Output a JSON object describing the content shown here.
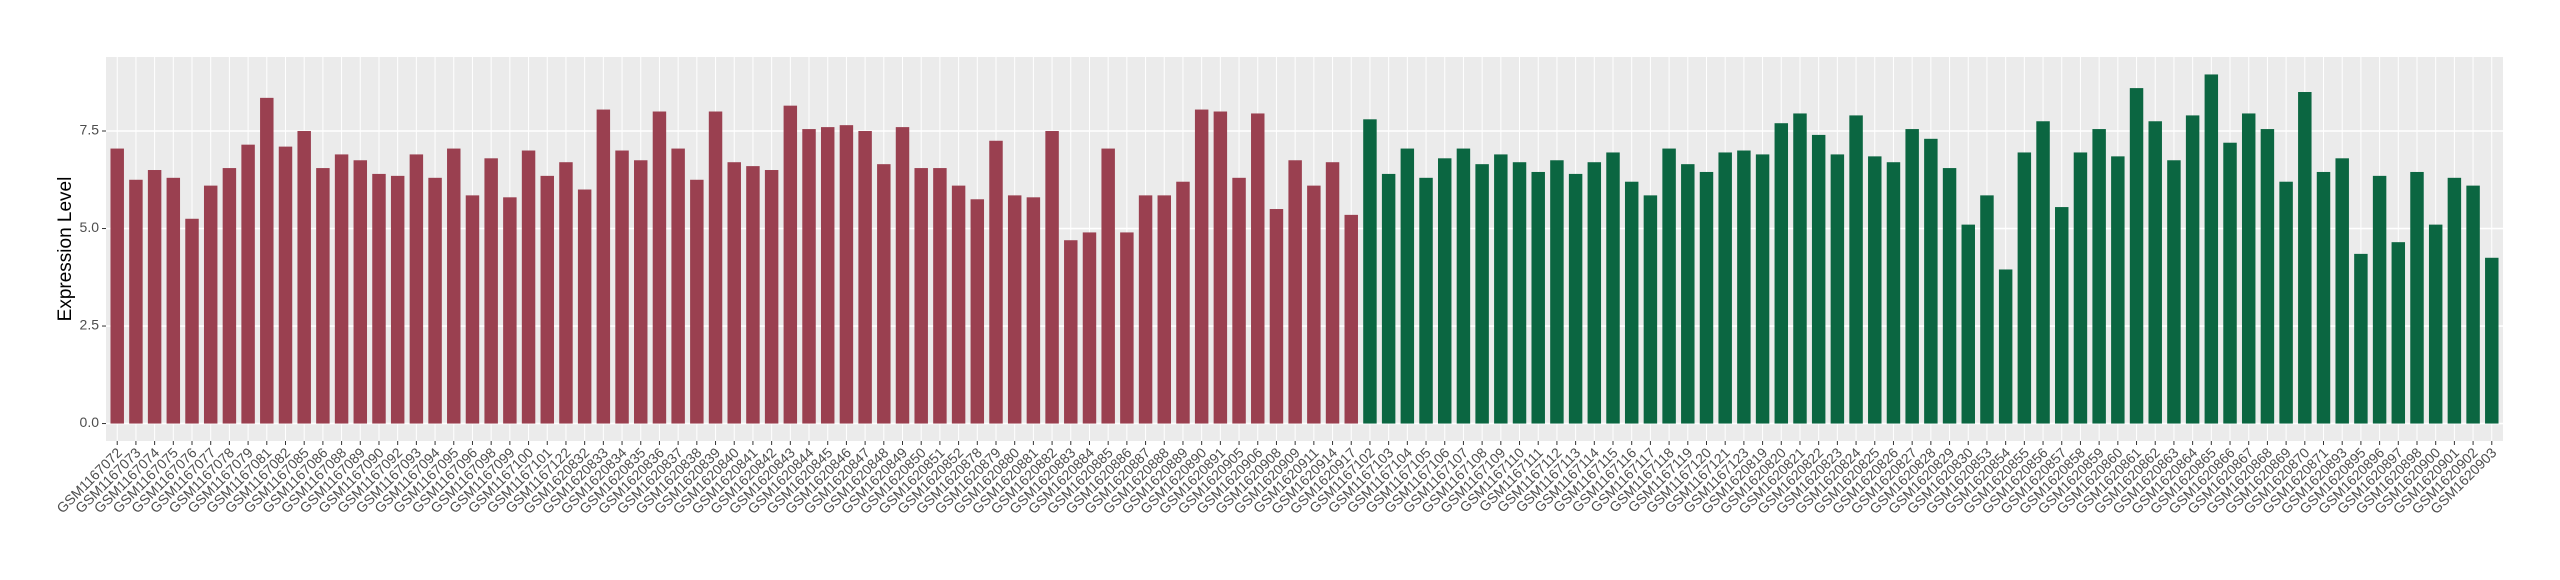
{
  "chart_data": {
    "type": "bar",
    "y_label": "Expression Level",
    "categories": [
      "GSM1167072",
      "GSM1167073",
      "GSM1167074",
      "GSM1167075",
      "GSM1167076",
      "GSM1167077",
      "GSM1167078",
      "GSM1167079",
      "GSM1167081",
      "GSM1167082",
      "GSM1167085",
      "GSM1167086",
      "GSM1167088",
      "GSM1167089",
      "GSM1167090",
      "GSM1167092",
      "GSM1167093",
      "GSM1167094",
      "GSM1167095",
      "GSM1167096",
      "GSM1167098",
      "GSM1167099",
      "GSM1167100",
      "GSM1167101",
      "GSM1167122",
      "GSM1620832",
      "GSM1620833",
      "GSM1620834",
      "GSM1620835",
      "GSM1620836",
      "GSM1620837",
      "GSM1620838",
      "GSM1620839",
      "GSM1620840",
      "GSM1620841",
      "GSM1620842",
      "GSM1620843",
      "GSM1620844",
      "GSM1620845",
      "GSM1620846",
      "GSM1620847",
      "GSM1620848",
      "GSM1620849",
      "GSM1620850",
      "GSM1620851",
      "GSM1620852",
      "GSM1620878",
      "GSM1620879",
      "GSM1620880",
      "GSM1620881",
      "GSM1620882",
      "GSM1620883",
      "GSM1620884",
      "GSM1620885",
      "GSM1620886",
      "GSM1620887",
      "GSM1620888",
      "GSM1620889",
      "GSM1620890",
      "GSM1620891",
      "GSM1620905",
      "GSM1620906",
      "GSM1620908",
      "GSM1620909",
      "GSM1620911",
      "GSM1620914",
      "GSM1620917",
      "GSM1167102",
      "GSM1167103",
      "GSM1167104",
      "GSM1167105",
      "GSM1167106",
      "GSM1167107",
      "GSM1167108",
      "GSM1167109",
      "GSM1167110",
      "GSM1167111",
      "GSM1167112",
      "GSM1167113",
      "GSM1167114",
      "GSM1167115",
      "GSM1167116",
      "GSM1167117",
      "GSM1167118",
      "GSM1167119",
      "GSM1167120",
      "GSM1167121",
      "GSM1167123",
      "GSM1620819",
      "GSM1620820",
      "GSM1620821",
      "GSM1620822",
      "GSM1620823",
      "GSM1620824",
      "GSM1620825",
      "GSM1620826",
      "GSM1620827",
      "GSM1620828",
      "GSM1620829",
      "GSM1620830",
      "GSM1620853",
      "GSM1620854",
      "GSM1620855",
      "GSM1620856",
      "GSM1620857",
      "GSM1620858",
      "GSM1620859",
      "GSM1620860",
      "GSM1620861",
      "GSM1620862",
      "GSM1620863",
      "GSM1620864",
      "GSM1620865",
      "GSM1620866",
      "GSM1620867",
      "GSM1620868",
      "GSM1620869",
      "GSM1620870",
      "GSM1620871",
      "GSM1620893",
      "GSM1620895",
      "GSM1620896",
      "GSM1620897",
      "GSM1620898",
      "GSM1620900",
      "GSM1620901",
      "GSM1620902",
      "GSM1620903"
    ],
    "values": [
      7.05,
      6.25,
      6.5,
      6.3,
      5.25,
      6.1,
      6.55,
      7.15,
      8.35,
      7.1,
      7.5,
      6.55,
      6.9,
      6.75,
      6.4,
      6.35,
      6.9,
      6.3,
      7.05,
      5.85,
      6.8,
      5.8,
      7.0,
      6.35,
      6.7,
      6.0,
      8.05,
      7.0,
      6.75,
      8.0,
      7.05,
      6.25,
      8.0,
      6.7,
      6.6,
      6.5,
      8.15,
      7.55,
      7.6,
      7.65,
      7.5,
      6.65,
      7.6,
      6.55,
      6.55,
      6.1,
      5.75,
      7.25,
      5.85,
      5.8,
      7.5,
      4.7,
      4.9,
      7.05,
      4.9,
      5.85,
      5.85,
      6.2,
      8.05,
      8.0,
      6.3,
      7.95,
      5.5,
      6.75,
      6.1,
      6.7,
      5.35,
      7.8,
      6.4,
      7.05,
      6.3,
      6.8,
      7.05,
      6.65,
      6.9,
      6.7,
      6.45,
      6.75,
      6.4,
      6.7,
      6.95,
      6.2,
      5.85,
      7.05,
      6.65,
      6.45,
      6.95,
      7.0,
      6.9,
      7.7,
      7.95,
      7.4,
      6.9,
      7.9,
      6.85,
      6.7,
      7.55,
      7.3,
      6.55,
      5.1,
      5.85,
      3.95,
      6.95,
      7.75,
      5.55,
      6.95,
      7.55,
      6.85,
      8.6,
      7.75,
      6.75,
      7.9,
      8.95,
      7.2,
      7.95,
      7.55,
      6.2,
      8.5,
      6.45,
      6.8,
      4.35,
      6.35,
      4.65,
      6.45,
      5.1,
      6.3,
      6.1,
      4.25
    ],
    "colors": [
      "#9a4050",
      "#9a4050",
      "#9a4050",
      "#9a4050",
      "#9a4050",
      "#9a4050",
      "#9a4050",
      "#9a4050",
      "#9a4050",
      "#9a4050",
      "#9a4050",
      "#9a4050",
      "#9a4050",
      "#9a4050",
      "#9a4050",
      "#9a4050",
      "#9a4050",
      "#9a4050",
      "#9a4050",
      "#9a4050",
      "#9a4050",
      "#9a4050",
      "#9a4050",
      "#9a4050",
      "#9a4050",
      "#9a4050",
      "#9a4050",
      "#9a4050",
      "#9a4050",
      "#9a4050",
      "#9a4050",
      "#9a4050",
      "#9a4050",
      "#9a4050",
      "#9a4050",
      "#9a4050",
      "#9a4050",
      "#9a4050",
      "#9a4050",
      "#9a4050",
      "#9a4050",
      "#9a4050",
      "#9a4050",
      "#9a4050",
      "#9a4050",
      "#9a4050",
      "#9a4050",
      "#9a4050",
      "#9a4050",
      "#9a4050",
      "#9a4050",
      "#9a4050",
      "#9a4050",
      "#9a4050",
      "#9a4050",
      "#9a4050",
      "#9a4050",
      "#9a4050",
      "#9a4050",
      "#9a4050",
      "#9a4050",
      "#9a4050",
      "#9a4050",
      "#9a4050",
      "#9a4050",
      "#9a4050",
      "#9a4050",
      "#0b6641",
      "#0b6641",
      "#0b6641",
      "#0b6641",
      "#0b6641",
      "#0b6641",
      "#0b6641",
      "#0b6641",
      "#0b6641",
      "#0b6641",
      "#0b6641",
      "#0b6641",
      "#0b6641",
      "#0b6641",
      "#0b6641",
      "#0b6641",
      "#0b6641",
      "#0b6641",
      "#0b6641",
      "#0b6641",
      "#0b6641",
      "#0b6641",
      "#0b6641",
      "#0b6641",
      "#0b6641",
      "#0b6641",
      "#0b6641",
      "#0b6641",
      "#0b6641",
      "#0b6641",
      "#0b6641",
      "#0b6641",
      "#0b6641",
      "#0b6641",
      "#0b6641",
      "#0b6641",
      "#0b6641",
      "#0b6641",
      "#0b6641",
      "#0b6641",
      "#0b6641",
      "#0b6641",
      "#0b6641",
      "#0b6641",
      "#0b6641",
      "#0b6641",
      "#0b6641",
      "#0b6641",
      "#0b6641",
      "#0b6641",
      "#0b6641",
      "#0b6641",
      "#0b6641",
      "#0b6641",
      "#0b6641",
      "#0b6641",
      "#0b6641",
      "#0b6641",
      "#0b6641",
      "#0b6641",
      "#0b6641"
    ],
    "ylim": [
      -0.4475,
      9.3975
    ],
    "yticks": [
      {
        "value": 0,
        "label": "0.0"
      },
      {
        "value": 2.5,
        "label": "2.5"
      },
      {
        "value": 5,
        "label": "5.0"
      },
      {
        "value": 7.5,
        "label": "7.5"
      }
    ],
    "grid": true
  }
}
